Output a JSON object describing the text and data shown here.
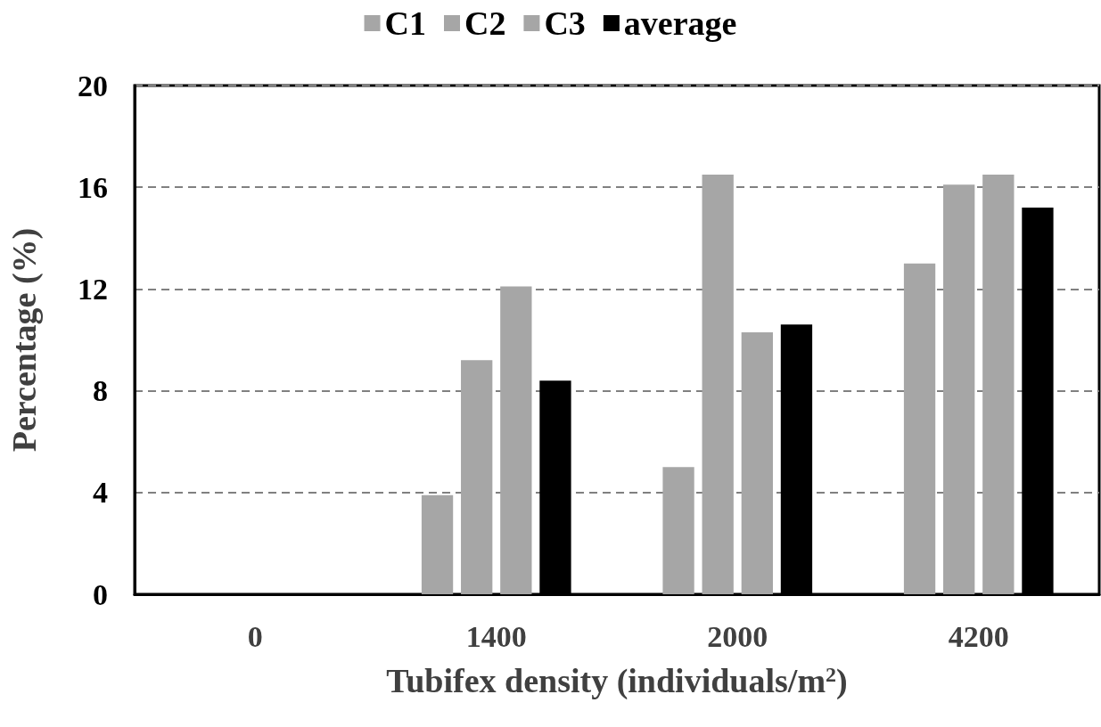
{
  "chart_data": {
    "type": "bar",
    "xlabel": "Tubifex density (individuals/m$^{2}$)",
    "ylabel": "Percentage (%)",
    "categories": [
      "0",
      "1400",
      "2000",
      "4200"
    ],
    "series": [
      {
        "name": "C1",
        "color": "#a6a6a6",
        "values": [
          0,
          3.9,
          5.0,
          13.0
        ]
      },
      {
        "name": "C2",
        "color": "#a6a6a6",
        "values": [
          0,
          9.2,
          16.5,
          16.1
        ]
      },
      {
        "name": "C3",
        "color": "#a6a6a6",
        "values": [
          0,
          12.1,
          10.3,
          16.5
        ]
      },
      {
        "name": "average",
        "color": "#000000",
        "values": [
          0,
          8.4,
          10.6,
          15.2
        ]
      }
    ],
    "ylim": [
      0,
      20
    ],
    "yticks": [
      0,
      4,
      8,
      12,
      16,
      20
    ],
    "grid": "y",
    "legend": "top"
  }
}
